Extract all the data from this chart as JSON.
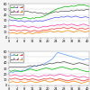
{
  "n_points": 42,
  "panel1": {
    "ylim": [
      0,
      60
    ],
    "ytick_labels": [
      "0",
      "10",
      "20",
      "30",
      "40",
      "50",
      "60"
    ],
    "yticks": [
      0,
      10,
      20,
      30,
      40,
      50,
      60
    ],
    "lines": [
      {
        "color": "#00bb00",
        "lw": 0.5,
        "values": [
          38,
          36,
          35,
          34,
          33,
          34,
          33,
          35,
          36,
          35,
          34,
          33,
          35,
          34,
          36,
          35,
          36,
          37,
          38,
          40,
          42,
          44,
          46,
          48,
          50,
          51,
          52,
          53,
          54,
          55,
          54,
          55,
          56,
          55,
          56,
          57,
          58,
          57,
          58,
          57,
          56,
          55
        ]
      },
      {
        "color": "#555555",
        "lw": 0.5,
        "values": [
          48,
          47,
          46,
          47,
          46,
          45,
          46,
          45,
          46,
          47,
          46,
          45,
          44,
          45,
          44,
          43,
          44,
          43,
          42,
          43,
          42,
          43,
          44,
          45,
          46,
          45,
          46,
          47,
          46,
          47,
          46,
          47,
          48,
          47,
          48,
          49,
          48,
          49,
          48,
          49,
          50,
          49
        ]
      },
      {
        "color": "#5555ff",
        "lw": 0.5,
        "values": [
          32,
          31,
          30,
          31,
          30,
          29,
          30,
          29,
          28,
          29,
          30,
          29,
          28,
          29,
          30,
          29,
          30,
          29,
          30,
          31,
          32,
          33,
          34,
          35,
          36,
          35,
          36,
          37,
          36,
          37,
          38,
          37,
          36,
          37,
          38,
          37,
          36,
          35,
          36,
          37,
          36,
          35
        ]
      },
      {
        "color": "#ff44aa",
        "lw": 0.5,
        "values": [
          22,
          21,
          22,
          21,
          20,
          19,
          20,
          21,
          20,
          19,
          18,
          19,
          20,
          19,
          18,
          17,
          18,
          19,
          20,
          19,
          20,
          21,
          22,
          21,
          22,
          23,
          22,
          23,
          24,
          23,
          22,
          23,
          24,
          23,
          22,
          21,
          22,
          23,
          24,
          23,
          22,
          21
        ]
      },
      {
        "color": "#ff3333",
        "lw": 0.5,
        "values": [
          14,
          13,
          14,
          13,
          12,
          13,
          12,
          13,
          14,
          13,
          12,
          11,
          12,
          13,
          12,
          11,
          12,
          13,
          14,
          13,
          14,
          15,
          16,
          15,
          16,
          17,
          16,
          17,
          18,
          17,
          16,
          17,
          18,
          17,
          16,
          15,
          16,
          17,
          16,
          15,
          16,
          17
        ]
      },
      {
        "color": "#ff8800",
        "lw": 0.5,
        "values": [
          8,
          8,
          9,
          8,
          7,
          8,
          9,
          8,
          7,
          8,
          9,
          8,
          7,
          8,
          9,
          8,
          9,
          10,
          11,
          10,
          11,
          12,
          11,
          10,
          11,
          12,
          11,
          10,
          11,
          12,
          13,
          12,
          11,
          10,
          11,
          12,
          13,
          12,
          11,
          10,
          11,
          12
        ]
      }
    ],
    "legend_loc": "upper left",
    "legend_labels": [
      "a",
      "b",
      "c",
      "d",
      "e",
      "f"
    ]
  },
  "panel2": {
    "ylim": [
      0,
      60
    ],
    "ytick_labels": [
      "0",
      "10",
      "20",
      "30",
      "40",
      "50",
      "60"
    ],
    "yticks": [
      0,
      10,
      20,
      30,
      40,
      50,
      60
    ],
    "lines": [
      {
        "color": "#5599ff",
        "lw": 0.5,
        "values": [
          22,
          24,
          23,
          25,
          24,
          26,
          25,
          27,
          26,
          28,
          30,
          32,
          33,
          35,
          34,
          36,
          35,
          37,
          38,
          40,
          42,
          44,
          46,
          50,
          55,
          58,
          57,
          56,
          55,
          54,
          53,
          52,
          51,
          50,
          49,
          48,
          47,
          46,
          45,
          46,
          47,
          46
        ]
      },
      {
        "color": "#555555",
        "lw": 0.5,
        "values": [
          32,
          33,
          32,
          33,
          32,
          33,
          32,
          33,
          32,
          33,
          34,
          35,
          34,
          35,
          34,
          35,
          36,
          37,
          36,
          37,
          38,
          39,
          38,
          39,
          40,
          41,
          40,
          41,
          42,
          41,
          40,
          39,
          38,
          37,
          38,
          39,
          40,
          39,
          38,
          37,
          36,
          35
        ]
      },
      {
        "color": "#00bb00",
        "lw": 0.5,
        "values": [
          26,
          25,
          26,
          27,
          26,
          25,
          24,
          25,
          26,
          27,
          28,
          29,
          28,
          27,
          26,
          27,
          28,
          29,
          30,
          31,
          30,
          29,
          28,
          29,
          30,
          31,
          32,
          33,
          32,
          31,
          30,
          29,
          28,
          29,
          30,
          29,
          28,
          27,
          26,
          25,
          24,
          25
        ]
      },
      {
        "color": "#ff44aa",
        "lw": 0.5,
        "values": [
          18,
          17,
          18,
          19,
          18,
          17,
          16,
          17,
          18,
          17,
          16,
          17,
          18,
          17,
          16,
          15,
          16,
          17,
          18,
          17,
          18,
          19,
          18,
          17,
          18,
          19,
          20,
          19,
          18,
          17,
          16,
          17,
          18,
          17,
          16,
          15,
          14,
          15,
          16,
          15,
          14,
          13
        ]
      },
      {
        "color": "#ff3333",
        "lw": 0.5,
        "values": [
          12,
          11,
          12,
          13,
          12,
          11,
          10,
          11,
          12,
          11,
          10,
          11,
          12,
          11,
          10,
          9,
          10,
          11,
          12,
          11,
          12,
          13,
          12,
          11,
          10,
          11,
          12,
          11,
          10,
          9,
          8,
          9,
          10,
          11,
          12,
          11,
          10,
          9,
          8,
          9,
          10,
          11
        ]
      },
      {
        "color": "#ff8800",
        "lw": 0.5,
        "values": [
          6,
          6,
          7,
          6,
          5,
          6,
          7,
          6,
          5,
          6,
          7,
          8,
          7,
          6,
          5,
          6,
          7,
          8,
          9,
          8,
          7,
          6,
          7,
          8,
          9,
          10,
          9,
          8,
          7,
          6,
          5,
          6,
          7,
          8,
          7,
          6,
          5,
          4,
          5,
          6,
          7,
          8
        ]
      }
    ],
    "legend_loc": "upper left",
    "legend_labels": [
      "a",
      "b",
      "c",
      "d",
      "e",
      "f"
    ]
  },
  "bg_color": "#f5f5f5",
  "plot_bg": "#ffffff",
  "grid_color": "#cccccc",
  "tick_fontsize": 2.5,
  "legend_fontsize": 2
}
